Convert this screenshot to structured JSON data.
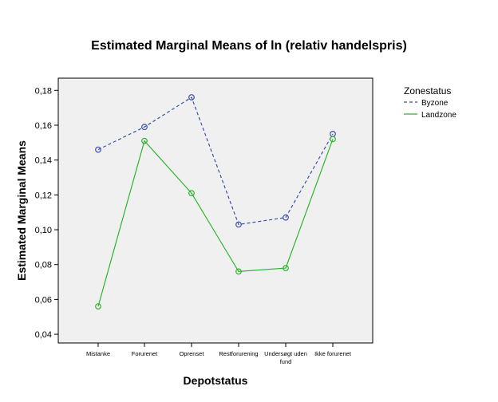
{
  "chart_data": {
    "type": "line",
    "title": "Estimated Marginal Means of ln (relativ handelspris)",
    "xlabel": "Depotstatus",
    "ylabel": "Estimated Marginal Means",
    "categories": [
      [
        "Mistanke"
      ],
      [
        "Forurenet"
      ],
      [
        "Oprenset"
      ],
      [
        "Restforurening"
      ],
      [
        "Undersøgt uden",
        "fund"
      ],
      [
        "Ikke forurenet"
      ]
    ],
    "ylim": [
      0.035,
      0.187
    ],
    "yticks": [
      {
        "value": 0.04,
        "label": "0,04"
      },
      {
        "value": 0.06,
        "label": "0,06"
      },
      {
        "value": 0.08,
        "label": "0,08"
      },
      {
        "value": 0.1,
        "label": "0,10"
      },
      {
        "value": 0.12,
        "label": "0,12"
      },
      {
        "value": 0.14,
        "label": "0,14"
      },
      {
        "value": 0.16,
        "label": "0,16"
      },
      {
        "value": 0.18,
        "label": "0,18"
      }
    ],
    "grid": false,
    "legend_title": "Zonestatus",
    "legend_position": "right",
    "series": [
      {
        "name": "Byzone",
        "color": "#3c4fab",
        "dash": "dashed",
        "values": [
          0.146,
          0.159,
          0.176,
          0.103,
          0.107,
          0.155
        ]
      },
      {
        "name": "Landzone",
        "color": "#2db52d",
        "dash": "solid",
        "values": [
          0.056,
          0.151,
          0.121,
          0.076,
          0.078,
          0.152
        ]
      }
    ]
  }
}
